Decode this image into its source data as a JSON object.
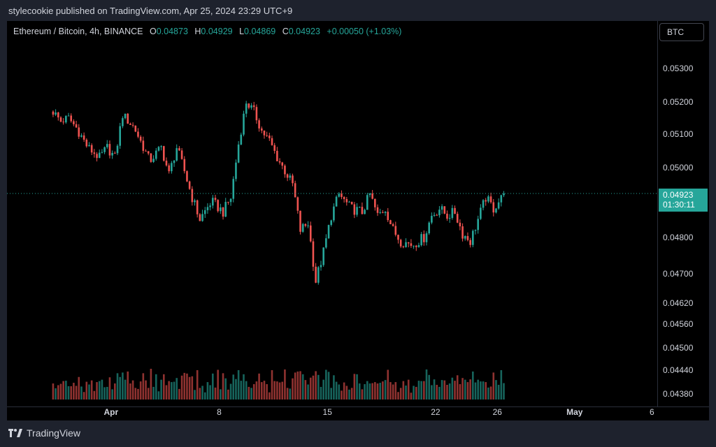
{
  "caption": "stylecookie published on TradingView.com, Apr 25, 2024 23:29 UTC+9",
  "legend": {
    "symbol": "Ethereum / Bitcoin, 4h, BINANCE",
    "o_label": "O",
    "o": "0.04873",
    "h_label": "H",
    "h": "0.04929",
    "l_label": "L",
    "l": "0.04869",
    "c_label": "C",
    "c": "0.04923",
    "change": "+0.00050 (+1.03%)"
  },
  "currency_button": "BTC",
  "price_tag": {
    "price": "0.04923",
    "countdown": "01:30:11"
  },
  "footer": {
    "brand": "TradingView",
    "logo": "tradingview-logo-icon"
  },
  "colors": {
    "up": "#26a69a",
    "down": "#ef5350",
    "background": "#000000",
    "axis_text": "#d1d4dc"
  },
  "chart_data": {
    "type": "candlestick",
    "symbol": "Ethereum / Bitcoin",
    "interval": "4h",
    "exchange": "BINANCE",
    "y_ticks": [
      0.0438,
      0.0444,
      0.045,
      0.0456,
      0.0462,
      0.047,
      0.048,
      0.049,
      0.05,
      0.051,
      0.052,
      0.053
    ],
    "y_tick_labels": [
      "0.04380",
      "0.04440",
      "0.04500",
      "0.04560",
      "0.04620",
      "0.04700",
      "0.04800",
      "0.04900",
      "0.05000",
      "0.05100",
      "0.05200",
      "0.05300"
    ],
    "x_tick_labels": [
      {
        "label": "Apr",
        "date": "2024-04-01"
      },
      {
        "label": "8",
        "date": "2024-04-08"
      },
      {
        "label": "15",
        "date": "2024-04-15"
      },
      {
        "label": "22",
        "date": "2024-04-22"
      },
      {
        "label": "26",
        "date": "2024-04-26"
      },
      {
        "label": "May",
        "date": "2024-05-01"
      },
      {
        "label": "6",
        "date": "2024-05-06"
      }
    ],
    "close_anchors": [
      [
        "2024-03-28",
        0.0517
      ],
      [
        "2024-03-28",
        0.0514
      ],
      [
        "2024-03-29",
        0.0515
      ],
      [
        "2024-03-29",
        0.0512
      ],
      [
        "2024-03-30",
        0.0506
      ],
      [
        "2024-03-31",
        0.0503
      ],
      [
        "2024-03-31",
        0.0506
      ],
      [
        "2024-04-01",
        0.0503
      ],
      [
        "2024-04-01",
        0.0516
      ],
      [
        "2024-04-02",
        0.0512
      ],
      [
        "2024-04-03",
        0.0502
      ],
      [
        "2024-04-04",
        0.0506
      ],
      [
        "2024-04-04",
        0.0498
      ],
      [
        "2024-04-05",
        0.0506
      ],
      [
        "2024-04-05",
        0.0499
      ],
      [
        "2024-04-06",
        0.0491
      ],
      [
        "2024-04-06",
        0.0485
      ],
      [
        "2024-04-07",
        0.049
      ],
      [
        "2024-04-08",
        0.0487
      ],
      [
        "2024-04-08",
        0.0491
      ],
      [
        "2024-04-09",
        0.0507
      ],
      [
        "2024-04-09",
        0.052
      ],
      [
        "2024-04-10",
        0.0517
      ],
      [
        "2024-04-10",
        0.0511
      ],
      [
        "2024-04-11",
        0.0508
      ],
      [
        "2024-04-11",
        0.0503
      ],
      [
        "2024-04-12",
        0.0499
      ],
      [
        "2024-04-12",
        0.0495
      ],
      [
        "2024-04-13",
        0.0482
      ],
      [
        "2024-04-13",
        0.0484
      ],
      [
        "2024-04-14",
        0.0468
      ],
      [
        "2024-04-14",
        0.0476
      ],
      [
        "2024-04-15",
        0.0486
      ],
      [
        "2024-04-15",
        0.0492
      ],
      [
        "2024-04-16",
        0.0488
      ],
      [
        "2024-04-17",
        0.0487
      ],
      [
        "2024-04-17",
        0.0492
      ],
      [
        "2024-04-18",
        0.0486
      ],
      [
        "2024-04-18",
        0.0488
      ],
      [
        "2024-04-19",
        0.0482
      ],
      [
        "2024-04-19",
        0.0479
      ],
      [
        "2024-04-20",
        0.0478
      ],
      [
        "2024-04-21",
        0.048
      ],
      [
        "2024-04-21",
        0.0486
      ],
      [
        "2024-04-22",
        0.0488
      ],
      [
        "2024-04-22",
        0.0486
      ],
      [
        "2024-04-23",
        0.0487
      ],
      [
        "2024-04-23",
        0.0481
      ],
      [
        "2024-04-24",
        0.0479
      ],
      [
        "2024-04-24",
        0.0485
      ],
      [
        "2024-04-25",
        0.0491
      ],
      [
        "2024-04-25",
        0.0488
      ],
      [
        "2024-04-26",
        0.04923
      ]
    ],
    "candles": [],
    "last_price": 0.04923,
    "volume_shown": true,
    "grid": false
  }
}
